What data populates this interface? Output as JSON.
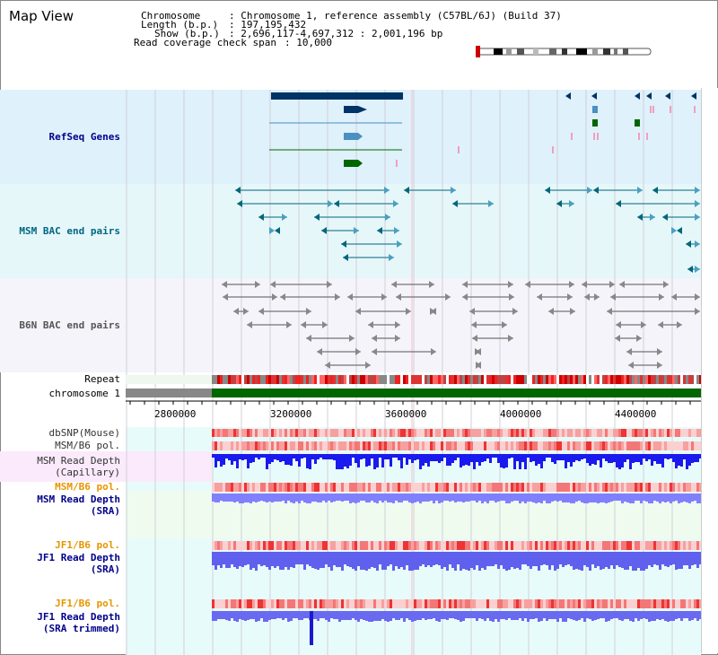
{
  "title": "Map View",
  "header": {
    "chromosome_key": "Chromosome",
    "chromosome_val": ": Chromosome 1, reference assembly (C57BL/6J) (Build 37)",
    "length_key": "Length (b.p.)",
    "length_val": ": 197,195,432",
    "show_key": "Show (b.p.)",
    "show_val": ": 2,696,117-4,697,312 : 2,001,196 bp",
    "coverage_key": "Read coverage check span",
    "coverage_val": ": 10,000"
  },
  "tracks": {
    "refseq": "RefSeq Genes",
    "msm_bac": "MSM BAC end pairs",
    "b6n_bac": "B6N BAC end pairs",
    "repeat": "Repeat",
    "chromosome": "chromosome 1",
    "dbsnp": "dbSNP(Mouse)",
    "msm_b6_pol": "MSM/B6 pol.",
    "msm_depth_cap_1": "MSM Read Depth",
    "msm_depth_cap_2": "(Capillary)",
    "msm_b6_pol2": "MSM/B6 pol.",
    "msm_depth_sra_1": "MSM Read Depth",
    "msm_depth_sra_2": "(SRA)",
    "jf1_b6_pol": "JF1/B6 pol.",
    "jf1_depth_sra_1": "JF1 Read Depth",
    "jf1_depth_sra_2": "(SRA)",
    "jf1_b6_pol2": "JF1/B6 pol.",
    "jf1_depth_trim_1": "JF1 Read Depth",
    "jf1_depth_trim_2": "(SRA trimmed)"
  },
  "axis": {
    "ticks": [
      "2800000",
      "3200000",
      "3600000",
      "4000000",
      "4400000"
    ]
  },
  "colors": {
    "refseq_bg": "#dff1fb",
    "msm_bg": "#e6f7fa",
    "b6n_bg": "#f4f4fa",
    "gene_dark": "#003366",
    "gene_mid": "#4a90c0",
    "gene_green": "#006600",
    "msm_bac": "#00667a",
    "b6n_bac": "#555555",
    "chrom_green": "#006600",
    "chrom_grey": "#888888",
    "label_blue": "#00008b",
    "label_orange": "#e69500",
    "label_teal": "#006680"
  }
}
